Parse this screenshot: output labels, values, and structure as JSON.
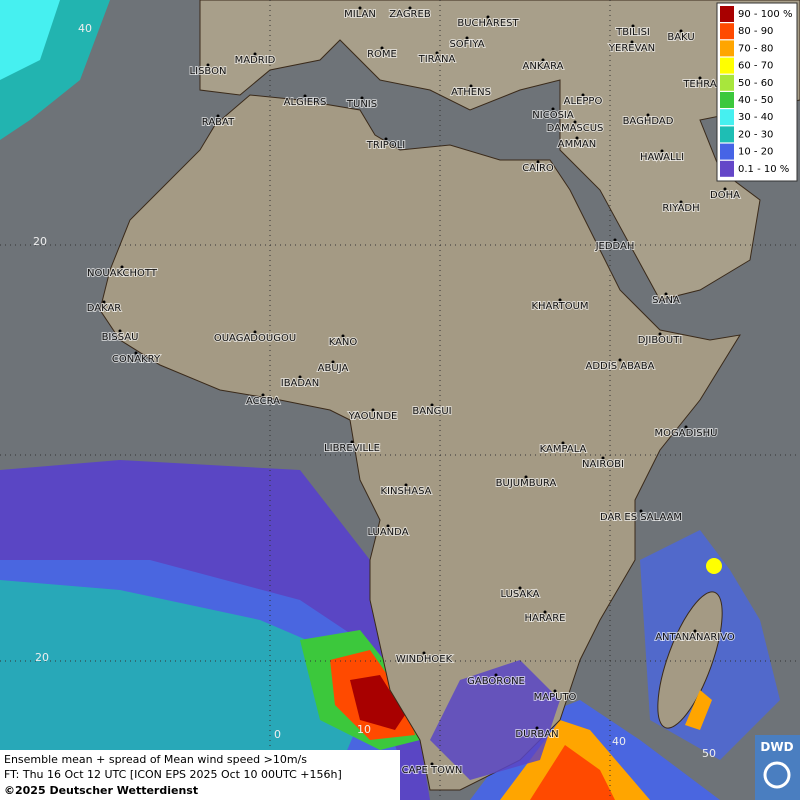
{
  "map": {
    "cities": [
      "MILAN",
      "ZAGREB",
      "BUCHAREST",
      "TBILISI",
      "BAKU",
      "YEREVAN",
      "SOFIYA",
      "ROME",
      "TIRANA",
      "ANKARA",
      "LISBON",
      "MADRID",
      "TEHRA",
      "ALGIERS",
      "TUNIS",
      "ATHENS",
      "ALEPPO",
      "RABAT",
      "NICOSIA",
      "BAGHDAD",
      "TRIPOLI",
      "DAMASCUS",
      "AMMAN",
      "HAWALLI",
      "CAIRO",
      "DOHA",
      "RIYADH",
      "JEDDAH",
      "NOUAKCHOTT",
      "SANA",
      "DAKAR",
      "KHARTOUM",
      "BISSAU",
      "DJIBOUTI",
      "OUAGADOUGOU",
      "KANO",
      "CONAKRY",
      "ADDIS ABABA",
      "ABUJA",
      "IBADAN",
      "ACCRA",
      "YAOUNDE",
      "BANGUI",
      "MOGADISHU",
      "LIBREVILLE",
      "KAMPALA",
      "NAIROBI",
      "KINSHASA",
      "BUJUMBURA",
      "DAR ES SALAAM",
      "LUANDA",
      "LUSAKA",
      "HARARE",
      "ANTANANARIVO",
      "WINDHOEK",
      "GABORONE",
      "MAPUTO",
      "DURBAN",
      "CAPE TOWN"
    ],
    "grid_labels": [
      "40",
      "20",
      "20",
      "0",
      "10",
      "40",
      "50"
    ],
    "legend": {
      "entries": [
        {
          "label": "90 - 100 %",
          "color": "#a80000"
        },
        {
          "label": "80 - 90",
          "color": "#ff4a00"
        },
        {
          "label": "70 - 80",
          "color": "#ffa500"
        },
        {
          "label": "60 - 70",
          "color": "#ffff00"
        },
        {
          "label": "50 - 60",
          "color": "#a8e63c"
        },
        {
          "label": "40 - 50",
          "color": "#3cc83c"
        },
        {
          "label": "30 - 40",
          "color": "#46f0f0"
        },
        {
          "label": "20 - 30",
          "color": "#1ebeb4"
        },
        {
          "label": "10 - 20",
          "color": "#4664e6"
        },
        {
          "label": "0.1 - 10 %",
          "color": "#6446c8"
        }
      ]
    },
    "caption": {
      "line1": "Ensemble mean + spread of Mean wind speed >10m/s",
      "line2": "FT: Thu 16 Oct 12 UTC [ICON EPS 2025 Oct 10 00UTC +156h]",
      "copyright": "©2025 Deutscher Wetterdienst"
    },
    "logo": "DWD"
  }
}
